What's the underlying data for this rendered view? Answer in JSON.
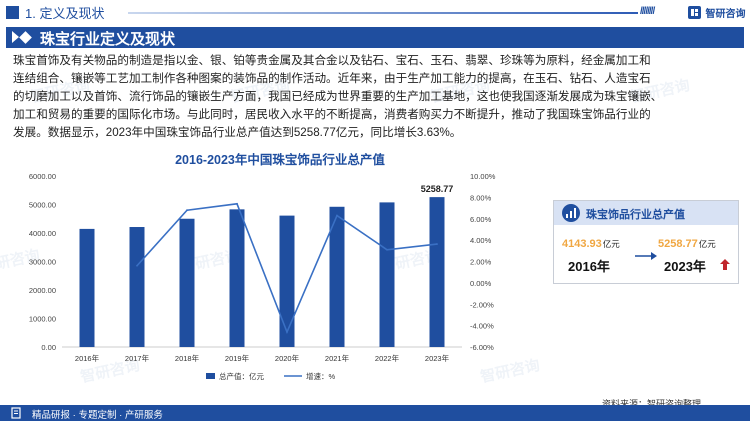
{
  "header": {
    "section": "1. 定义及现状",
    "brand": "智研咨询"
  },
  "section_title": "珠宝行业定义及现状",
  "paragraph_lines": [
    "珠宝首饰及有关物品的制造是指以金、银、铂等贵金属及其合金以及钻石、宝石、玉石、翡翠、珍珠等为原料，经金属加工和",
    "连结组合、镶嵌等工艺加工制作各种图案的装饰品的制作活动。近年来，由于生产加工能力的提高，在玉石、钻石、人造宝石",
    "的切磨加工以及首饰、流行饰品的镶嵌生产方面，我国已经成为世界重要的生产加工基地，这也使我国逐渐发展成为珠宝镶嵌、",
    "加工和贸易的重要的国际化市场。与此同时，居民收入水平的不断提高，消费者购买力不断提升，推动了我国珠宝饰品行业的",
    "发展。数据显示，2023年中国珠宝饰品行业总产值达到5258.77亿元，同比增长3.63%。"
  ],
  "chart_data": {
    "type": "bar+line",
    "title": "2016-2023年中国珠宝饰品行业总产值",
    "categories": [
      "2016年",
      "2017年",
      "2018年",
      "2019年",
      "2020年",
      "2021年",
      "2022年",
      "2023年"
    ],
    "series": [
      {
        "name": "总产值：亿元",
        "type": "bar",
        "axis": "left",
        "values": [
          4144,
          4210,
          4500,
          4830,
          4610,
          4920,
          5074,
          5258.77
        ]
      },
      {
        "name": "增速：%",
        "type": "line",
        "axis": "right",
        "values": [
          null,
          1.6,
          6.8,
          7.4,
          -4.6,
          6.3,
          3.1,
          3.63
        ]
      }
    ],
    "y_left": {
      "ticks": [
        "0.00",
        "1000.00",
        "2000.00",
        "3000.00",
        "4000.00",
        "5000.00",
        "6000.00"
      ],
      "min": 0,
      "max": 6000
    },
    "y_right": {
      "ticks": [
        "-6.00%",
        "-4.00%",
        "-2.00%",
        "0.00%",
        "2.00%",
        "4.00%",
        "6.00%",
        "8.00%",
        "10.00%"
      ],
      "min": -6,
      "max": 10
    },
    "data_labels": [
      {
        "category": "2023年",
        "text": "5258.77"
      }
    ],
    "legend_position": "bottom",
    "colors": {
      "bar": "#1f4e9f",
      "line": "#3a70c4"
    }
  },
  "card": {
    "title": "珠宝饰品行业总产值",
    "left_value": "4143.93",
    "left_unit": "亿元",
    "left_year": "2016年",
    "right_value": "5258.77",
    "right_unit": "亿元",
    "right_year": "2023年"
  },
  "source": "资料来源：智研咨询整理",
  "footer": "精品研报 · 专题定制 · 产研服务",
  "watermark": "智研咨询",
  "colors": {
    "primary": "#1f4e9f",
    "accent": "#f0a742",
    "up": "#c0262c"
  }
}
